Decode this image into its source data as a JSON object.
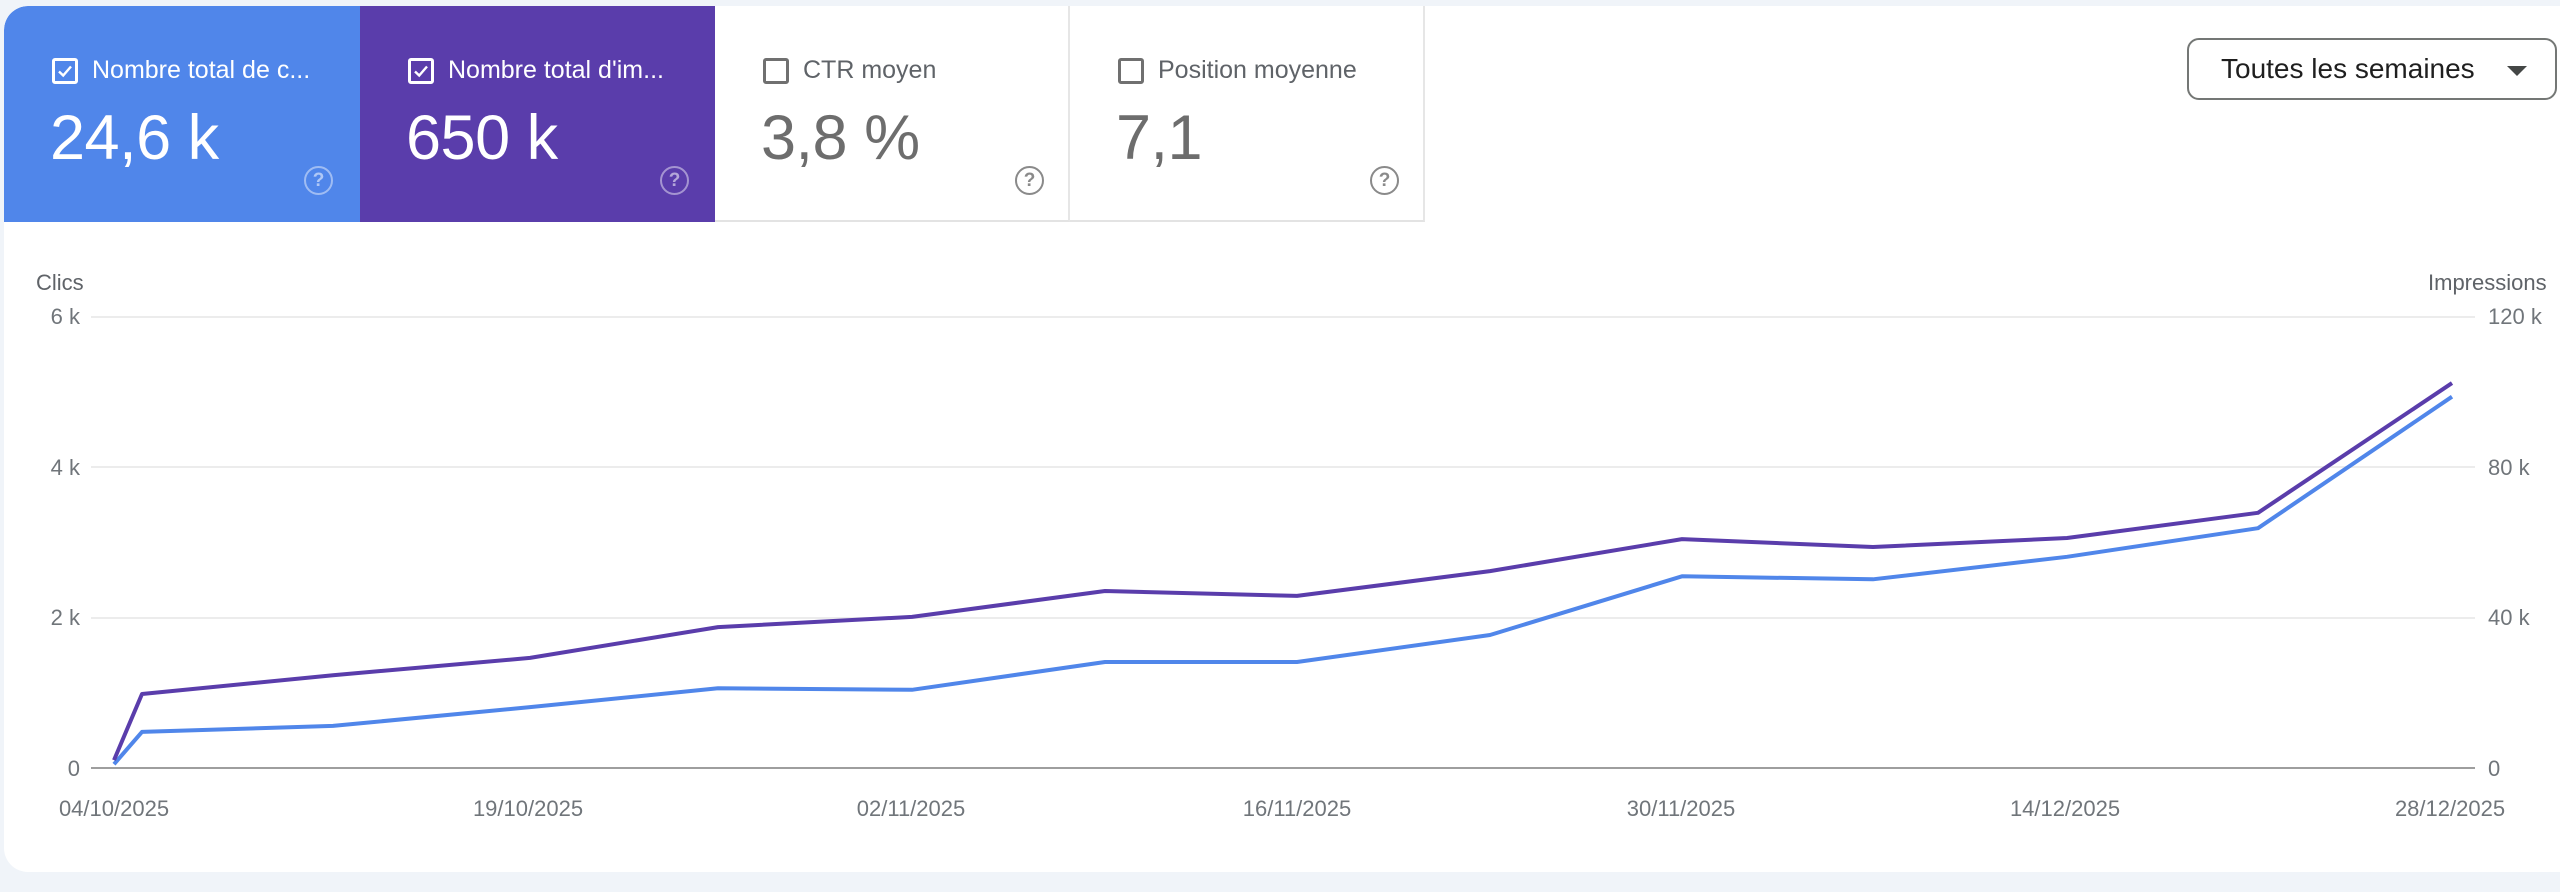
{
  "cards": [
    {
      "label": "Nombre total de c...",
      "value": "24,6 k",
      "checked": true,
      "color": "#5086ea",
      "help_icon": "help-circle-icon"
    },
    {
      "label": "Nombre total d'im...",
      "value": "650 k",
      "checked": true,
      "color": "#5a3dab",
      "help_icon": "help-circle-icon"
    },
    {
      "label": "CTR moyen",
      "value": "3,8 %",
      "checked": false,
      "help_icon": "help-circle-icon"
    },
    {
      "label": "Position moyenne",
      "value": "7,1",
      "checked": false,
      "help_icon": "help-circle-icon"
    }
  ],
  "help_glyph": "?",
  "dropdown": {
    "selected": "Toutes les semaines",
    "icon": "caret-down-icon"
  },
  "chart": {
    "left_axis_title": "Clics",
    "right_axis_title": "Impressions",
    "left_ticks": [
      "6 k",
      "4 k",
      "2 k",
      "0"
    ],
    "right_ticks": [
      "120 k",
      "80 k",
      "40 k",
      "0"
    ],
    "x_labels": [
      "04/10/2025",
      "19/10/2025",
      "02/11/2025",
      "16/11/2025",
      "30/11/2025",
      "14/12/2025",
      "28/12/2025"
    ]
  },
  "chart_data": {
    "type": "line",
    "title": "",
    "xlabel": "",
    "ylabel": "Clics",
    "ylabel_right": "Impressions",
    "ylim": [
      0,
      6000
    ],
    "ylim_right": [
      0,
      120000
    ],
    "grid": true,
    "legend": "metric cards above chart",
    "x": [
      "04/10/2025",
      "05/10/2025",
      "12/10/2025",
      "19/10/2025",
      "26/10/2025",
      "02/11/2025",
      "09/11/2025",
      "16/11/2025",
      "23/11/2025",
      "30/11/2025",
      "07/12/2025",
      "14/12/2025",
      "21/12/2025",
      "28/12/2025"
    ],
    "x_tick_labels": [
      "04/10/2025",
      "19/10/2025",
      "02/11/2025",
      "16/11/2025",
      "30/11/2025",
      "14/12/2025",
      "28/12/2025"
    ],
    "series": [
      {
        "name": "Clics",
        "axis": "left",
        "color": "#5086ea",
        "values": [
          50,
          480,
          560,
          810,
          1060,
          1040,
          1410,
          1410,
          1770,
          2550,
          2510,
          2810,
          3190,
          4940
        ]
      },
      {
        "name": "Impressions",
        "axis": "right",
        "color": "#5a3dab",
        "values": [
          2100,
          19700,
          24700,
          29300,
          37500,
          40200,
          47100,
          45800,
          52400,
          60900,
          58800,
          61200,
          67900,
          102400
        ]
      }
    ]
  }
}
